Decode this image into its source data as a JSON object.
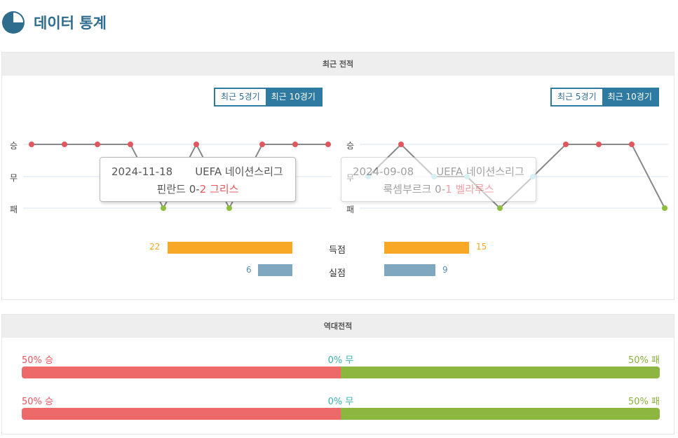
{
  "header": {
    "title": "데이터 통계",
    "icon": "pie-chart-icon"
  },
  "recent": {
    "title": "최근 전적",
    "toggle": {
      "opt5": "최근 5경기",
      "opt10": "최근 10경기",
      "selected": "최근 10경기"
    },
    "ylabels": {
      "win": "승",
      "draw": "무",
      "loss": "패"
    },
    "colors": {
      "win": "#e0575f",
      "draw": "#a8dce6",
      "loss": "#8bbf3c",
      "line": "#888888"
    },
    "left": {
      "results": [
        "W",
        "W",
        "W",
        "W",
        "L",
        "W",
        "L",
        "W",
        "W",
        "W"
      ],
      "tooltip": {
        "date": "2024-11-18",
        "league": "UEFA 네이션스리그",
        "home": "핀란드",
        "home_score": "0",
        "sep": "-",
        "away_score": "2",
        "away": "그리스"
      }
    },
    "right": {
      "results": [
        "D",
        "W",
        "D",
        "D",
        "L",
        "D",
        "W",
        "W",
        "W",
        "L"
      ],
      "tooltip": {
        "date": "2024-09-08",
        "league": "UEFA 네이션스리그",
        "home": "룩셈부르크",
        "home_score": "0",
        "sep": "-",
        "away_score": "1",
        "away": "벨라루스"
      }
    },
    "stats": {
      "scored_label": "득점",
      "conceded_label": "실점",
      "left_scored": "22",
      "left_conceded": "6",
      "right_scored": "15",
      "right_conceded": "9",
      "scored_color": "#f9a825",
      "conceded_color": "#7fa8c0"
    }
  },
  "h2h": {
    "title": "역대전적",
    "rows": [
      {
        "win": "50% 승",
        "draw": "0% 무",
        "loss": "50% 패",
        "win_pct": 50,
        "loss_pct": 50
      },
      {
        "win": "50% 승",
        "draw": "0% 무",
        "loss": "50% 패",
        "win_pct": 50,
        "loss_pct": 50
      }
    ]
  }
}
